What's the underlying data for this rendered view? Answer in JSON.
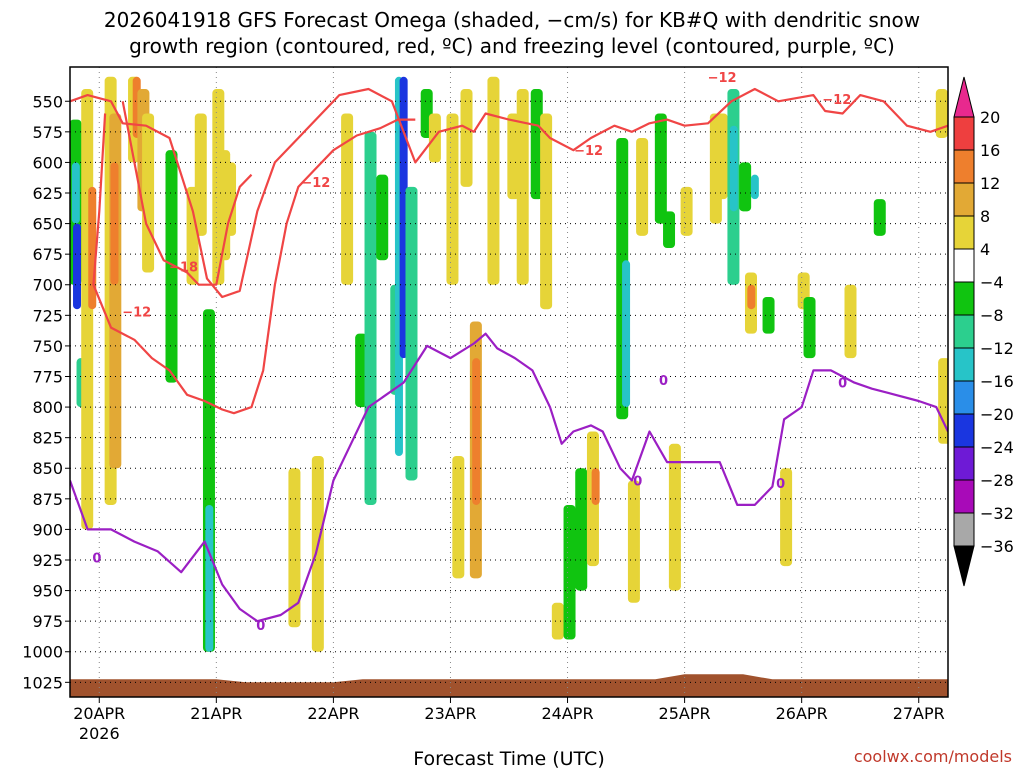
{
  "chart_data": {
    "type": "heatmap",
    "title_line1": "2026041918 GFS Forecast Omega (shaded, −cm/s) for KB#Q with dendritic snow",
    "title_line2": "growth region (contoured, red, ºC) and freezing level (contoured, purple, ºC)",
    "xlabel": "Forecast Time (UTC)",
    "credit": "coolwx.com/models",
    "x_ticks": [
      {
        "label": "20APR",
        "sub": "2026",
        "day": 0
      },
      {
        "label": "21APR",
        "sub": "",
        "day": 1
      },
      {
        "label": "22APR",
        "sub": "",
        "day": 2
      },
      {
        "label": "23APR",
        "sub": "",
        "day": 3
      },
      {
        "label": "24APR",
        "sub": "",
        "day": 4
      },
      {
        "label": "25APR",
        "sub": "",
        "day": 5
      },
      {
        "label": "26APR",
        "sub": "",
        "day": 6
      },
      {
        "label": "27APR",
        "sub": "",
        "day": 7
      }
    ],
    "x_range_days": [
      -0.25,
      7.25
    ],
    "y_range_hpa": [
      1037,
      522
    ],
    "y_ticks": [
      "550",
      "575",
      "600",
      "625",
      "650",
      "675",
      "700",
      "725",
      "750",
      "775",
      "800",
      "825",
      "850",
      "875",
      "900",
      "925",
      "950",
      "975",
      "1000",
      "1025"
    ],
    "colorbar": {
      "labels": [
        "20",
        "16",
        "12",
        "8",
        "4",
        "−4",
        "−8",
        "−12",
        "−16",
        "−20",
        "−24",
        "−28",
        "−32",
        "−36"
      ],
      "colors": [
        "#e8298e",
        "#ee3f3f",
        "#ee7f2d",
        "#e2a935",
        "#e6d438",
        "#ffffff",
        "#10c410",
        "#2ccf8e",
        "#27c4c8",
        "#2a8ee8",
        "#1a36e0",
        "#6e1ad6",
        "#a80ab8",
        "#a8a8a8",
        "#000000"
      ]
    },
    "omega_cells": [
      {
        "day": -0.22,
        "p0": 565,
        "p1": 700,
        "v": -6
      },
      {
        "day": -0.2,
        "p0": 600,
        "p1": 650,
        "v": -14
      },
      {
        "day": -0.19,
        "p0": 650,
        "p1": 720,
        "v": -20
      },
      {
        "day": -0.16,
        "p0": 760,
        "p1": 800,
        "v": -8
      },
      {
        "day": -0.12,
        "p0": 540,
        "p1": 900,
        "v": 6
      },
      {
        "day": -0.06,
        "p0": 620,
        "p1": 720,
        "v": 12
      },
      {
        "day": 0.08,
        "p0": 530,
        "p1": 880,
        "v": 6
      },
      {
        "day": 0.12,
        "p0": 560,
        "p1": 850,
        "v": 9
      },
      {
        "day": 0.13,
        "p0": 600,
        "p1": 700,
        "v": 15
      },
      {
        "day": 0.28,
        "p0": 530,
        "p1": 600,
        "v": 6
      },
      {
        "day": 0.32,
        "p0": 530,
        "p1": 580,
        "v": 12
      },
      {
        "day": 0.36,
        "p0": 540,
        "p1": 640,
        "v": 9
      },
      {
        "day": 0.4,
        "p0": 560,
        "p1": 690,
        "v": 6
      },
      {
        "day": 0.6,
        "p0": 590,
        "p1": 780,
        "v": -7
      },
      {
        "day": 0.78,
        "p0": 620,
        "p1": 700,
        "v": 6
      },
      {
        "day": 0.85,
        "p0": 560,
        "p1": 660,
        "v": 5
      },
      {
        "day": 0.92,
        "p0": 720,
        "p1": 1000,
        "v": -7
      },
      {
        "day": 0.94,
        "p0": 880,
        "p1": 1000,
        "v": -14
      },
      {
        "day": 1.0,
        "p0": 540,
        "p1": 700,
        "v": 5
      },
      {
        "day": 1.05,
        "p0": 590,
        "p1": 680,
        "v": 6
      },
      {
        "day": 1.1,
        "p0": 600,
        "p1": 660,
        "v": 5
      },
      {
        "day": 1.65,
        "p0": 850,
        "p1": 980,
        "v": 5
      },
      {
        "day": 1.85,
        "p0": 840,
        "p1": 1000,
        "v": 6
      },
      {
        "day": 2.1,
        "p0": 560,
        "p1": 700,
        "v": 5
      },
      {
        "day": 2.22,
        "p0": 740,
        "p1": 800,
        "v": -7
      },
      {
        "day": 2.3,
        "p0": 575,
        "p1": 880,
        "v": -8
      },
      {
        "day": 2.4,
        "p0": 610,
        "p1": 680,
        "v": -6
      },
      {
        "day": 2.52,
        "p0": 700,
        "p1": 790,
        "v": -9
      },
      {
        "day": 2.56,
        "p0": 530,
        "p1": 840,
        "v": -14
      },
      {
        "day": 2.6,
        "p0": 530,
        "p1": 760,
        "v": -22
      },
      {
        "day": 2.65,
        "p0": 620,
        "p1": 860,
        "v": -9
      },
      {
        "day": 2.78,
        "p0": 540,
        "p1": 580,
        "v": -7
      },
      {
        "day": 2.85,
        "p0": 560,
        "p1": 600,
        "v": 5
      },
      {
        "day": 3.0,
        "p0": 560,
        "p1": 700,
        "v": 6
      },
      {
        "day": 3.05,
        "p0": 840,
        "p1": 940,
        "v": 5
      },
      {
        "day": 3.12,
        "p0": 540,
        "p1": 620,
        "v": 6
      },
      {
        "day": 3.2,
        "p0": 730,
        "p1": 940,
        "v": 9
      },
      {
        "day": 3.22,
        "p0": 760,
        "p1": 880,
        "v": 15
      },
      {
        "day": 3.35,
        "p0": 530,
        "p1": 700,
        "v": 6
      },
      {
        "day": 3.52,
        "p0": 560,
        "p1": 630,
        "v": 5
      },
      {
        "day": 3.6,
        "p0": 540,
        "p1": 700,
        "v": 5
      },
      {
        "day": 3.72,
        "p0": 540,
        "p1": 630,
        "v": -7
      },
      {
        "day": 3.8,
        "p0": 560,
        "p1": 720,
        "v": 6
      },
      {
        "day": 3.9,
        "p0": 960,
        "p1": 990,
        "v": 6
      },
      {
        "day": 4.0,
        "p0": 880,
        "p1": 990,
        "v": -7
      },
      {
        "day": 4.1,
        "p0": 850,
        "p1": 950,
        "v": -7
      },
      {
        "day": 4.2,
        "p0": 820,
        "p1": 930,
        "v": 6
      },
      {
        "day": 4.24,
        "p0": 850,
        "p1": 880,
        "v": 12
      },
      {
        "day": 4.45,
        "p0": 580,
        "p1": 810,
        "v": -7
      },
      {
        "day": 4.5,
        "p0": 680,
        "p1": 800,
        "v": -12
      },
      {
        "day": 4.55,
        "p0": 860,
        "p1": 960,
        "v": 5
      },
      {
        "day": 4.62,
        "p0": 580,
        "p1": 660,
        "v": 5
      },
      {
        "day": 4.78,
        "p0": 560,
        "p1": 650,
        "v": -7
      },
      {
        "day": 4.85,
        "p0": 640,
        "p1": 670,
        "v": -7
      },
      {
        "day": 4.9,
        "p0": 830,
        "p1": 950,
        "v": 6
      },
      {
        "day": 5.0,
        "p0": 620,
        "p1": 660,
        "v": 5
      },
      {
        "day": 5.25,
        "p0": 560,
        "p1": 650,
        "v": 6
      },
      {
        "day": 5.3,
        "p0": 560,
        "p1": 630,
        "v": 5
      },
      {
        "day": 5.4,
        "p0": 540,
        "p1": 700,
        "v": -9
      },
      {
        "day": 5.42,
        "p0": 570,
        "p1": 640,
        "v": -14
      },
      {
        "day": 5.5,
        "p0": 600,
        "p1": 640,
        "v": -7
      },
      {
        "day": 5.55,
        "p0": 690,
        "p1": 740,
        "v": 7
      },
      {
        "day": 5.57,
        "p0": 700,
        "p1": 720,
        "v": 13
      },
      {
        "day": 5.6,
        "p0": 610,
        "p1": 630,
        "v": -12
      },
      {
        "day": 5.7,
        "p0": 710,
        "p1": 740,
        "v": -7
      },
      {
        "day": 5.85,
        "p0": 850,
        "p1": 930,
        "v": 5
      },
      {
        "day": 6.0,
        "p0": 690,
        "p1": 720,
        "v": 5
      },
      {
        "day": 6.05,
        "p0": 710,
        "p1": 760,
        "v": -7
      },
      {
        "day": 6.4,
        "p0": 700,
        "p1": 760,
        "v": 5
      },
      {
        "day": 6.65,
        "p0": 630,
        "p1": 660,
        "v": -7
      },
      {
        "day": 7.18,
        "p0": 540,
        "p1": 580,
        "v": 5
      },
      {
        "day": 7.2,
        "p0": 760,
        "p1": 830,
        "v": 5
      }
    ],
    "dgz_lines": [
      {
        "name": "-12 upper",
        "points": [
          [
            -0.25,
            550
          ],
          [
            -0.1,
            545
          ],
          [
            0.1,
            550
          ],
          [
            0.2,
            568
          ],
          [
            0.4,
            570
          ],
          [
            0.6,
            580
          ],
          [
            0.8,
            640
          ],
          [
            0.92,
            695
          ],
          [
            1.05,
            710
          ],
          [
            1.2,
            705
          ],
          [
            1.35,
            640
          ],
          [
            1.5,
            600
          ],
          [
            1.7,
            580
          ],
          [
            1.9,
            560
          ],
          [
            2.05,
            545
          ],
          [
            2.3,
            540
          ],
          [
            2.5,
            550
          ],
          [
            2.7,
            600
          ],
          [
            2.9,
            575
          ],
          [
            3.1,
            570
          ],
          [
            3.2,
            575
          ],
          [
            3.3,
            560
          ],
          [
            3.5,
            565
          ],
          [
            3.75,
            570
          ],
          [
            3.85,
            580
          ],
          [
            4.05,
            590
          ],
          [
            4.2,
            580
          ],
          [
            4.4,
            570
          ],
          [
            4.55,
            575
          ],
          [
            4.7,
            568
          ],
          [
            4.85,
            565
          ],
          [
            5.0,
            570
          ],
          [
            5.2,
            568
          ],
          [
            5.4,
            550
          ],
          [
            5.6,
            540
          ],
          [
            5.8,
            550
          ],
          [
            6.1,
            545
          ],
          [
            6.2,
            558
          ],
          [
            6.35,
            560
          ],
          [
            6.5,
            545
          ],
          [
            6.7,
            550
          ],
          [
            6.9,
            570
          ],
          [
            7.1,
            575
          ],
          [
            7.25,
            570
          ]
        ]
      },
      {
        "name": "-12 lower",
        "points": [
          [
            0.05,
            560
          ],
          [
            0.0,
            640
          ],
          [
            -0.05,
            700
          ],
          [
            0.1,
            735
          ],
          [
            0.3,
            745
          ],
          [
            0.45,
            760
          ],
          [
            0.6,
            770
          ],
          [
            0.75,
            790
          ],
          [
            0.9,
            795
          ],
          [
            1.05,
            802
          ],
          [
            1.15,
            805
          ],
          [
            1.3,
            800
          ],
          [
            1.4,
            770
          ],
          [
            1.5,
            700
          ],
          [
            1.6,
            650
          ],
          [
            1.7,
            620
          ],
          [
            1.85,
            605
          ],
          [
            2.0,
            590
          ],
          [
            2.2,
            578
          ],
          [
            2.4,
            572
          ],
          [
            2.55,
            565
          ],
          [
            2.7,
            565
          ]
        ]
      },
      {
        "name": "-18 lower",
        "points": [
          [
            0.2,
            550
          ],
          [
            0.3,
            600
          ],
          [
            0.4,
            650
          ],
          [
            0.55,
            680
          ],
          [
            0.75,
            690
          ],
          [
            0.85,
            700
          ],
          [
            1.0,
            700
          ],
          [
            1.1,
            650
          ],
          [
            1.2,
            620
          ],
          [
            1.3,
            610
          ]
        ]
      }
    ],
    "dgz_labels": [
      {
        "text": "−12",
        "day": 0.32,
        "p": 722
      },
      {
        "text": "−18",
        "day": 0.72,
        "p": 685
      },
      {
        "text": "−12",
        "day": 1.85,
        "p": 616
      },
      {
        "text": "−12",
        "day": 4.18,
        "p": 590
      },
      {
        "text": "−12",
        "day": 5.32,
        "p": 530
      },
      {
        "text": "−12",
        "day": 6.3,
        "p": 548
      }
    ],
    "freeze_line": [
      [
        -0.25,
        860
      ],
      [
        -0.1,
        900
      ],
      [
        0.1,
        900
      ],
      [
        0.3,
        910
      ],
      [
        0.5,
        918
      ],
      [
        0.7,
        935
      ],
      [
        0.9,
        910
      ],
      [
        1.05,
        945
      ],
      [
        1.2,
        965
      ],
      [
        1.35,
        975
      ],
      [
        1.55,
        970
      ],
      [
        1.7,
        960
      ],
      [
        1.85,
        920
      ],
      [
        2.0,
        860
      ],
      [
        2.15,
        830
      ],
      [
        2.3,
        800
      ],
      [
        2.45,
        790
      ],
      [
        2.6,
        780
      ],
      [
        2.8,
        750
      ],
      [
        3.0,
        760
      ],
      [
        3.2,
        748
      ],
      [
        3.3,
        740
      ],
      [
        3.4,
        752
      ],
      [
        3.55,
        760
      ],
      [
        3.7,
        770
      ],
      [
        3.85,
        800
      ],
      [
        3.95,
        830
      ],
      [
        4.05,
        820
      ],
      [
        4.2,
        815
      ],
      [
        4.3,
        820
      ],
      [
        4.45,
        850
      ],
      [
        4.55,
        860
      ],
      [
        4.7,
        820
      ],
      [
        4.85,
        845
      ],
      [
        5.0,
        845
      ],
      [
        5.2,
        845
      ],
      [
        5.3,
        845
      ],
      [
        5.45,
        880
      ],
      [
        5.6,
        880
      ],
      [
        5.75,
        865
      ],
      [
        5.85,
        810
      ],
      [
        6.0,
        800
      ],
      [
        6.1,
        770
      ],
      [
        6.25,
        770
      ],
      [
        6.45,
        780
      ],
      [
        6.6,
        785
      ],
      [
        6.8,
        790
      ],
      [
        7.0,
        795
      ],
      [
        7.15,
        800
      ],
      [
        7.25,
        820
      ]
    ],
    "freeze_labels": [
      {
        "text": "0",
        "day": -0.02,
        "p": 923
      },
      {
        "text": "0",
        "day": 1.38,
        "p": 978
      },
      {
        "text": "0",
        "day": 4.6,
        "p": 860
      },
      {
        "text": "0",
        "day": 5.82,
        "p": 862
      },
      {
        "text": "0",
        "day": 6.35,
        "p": 780
      },
      {
        "text": "0",
        "day": 4.82,
        "p": 778
      }
    ]
  }
}
